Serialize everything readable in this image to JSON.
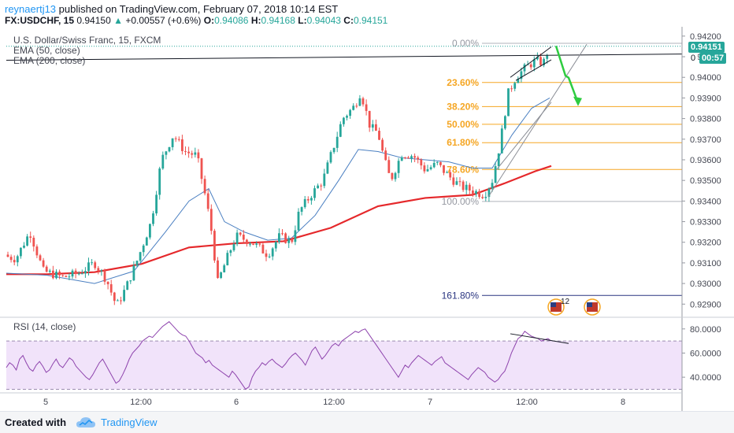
{
  "header": {
    "user": "reynaertj13",
    "published": " published on TradingView.com, February 07, 2018 10:14 EST",
    "symbol": "FX:USDCHF, 15",
    "open": "0.94150",
    "change": "+0.00557 (+0.6%)",
    "o_label": "O:",
    "o_value": "0.94086",
    "h_label": "H:",
    "h_value": "0.94168",
    "l_label": "L:",
    "l_value": "0.94043",
    "c_label": "C:",
    "c_value": "0.94151"
  },
  "legend": {
    "title": "U.S. Dollar/Swiss Franc, 15, FXCM",
    "ema50": "EMA (50, close)",
    "ema200": "EMA (200, close)",
    "rsi": "RSI (14, close)"
  },
  "price_badges": {
    "last_price": "0.94151",
    "countdown": "00:57",
    "partial": "0"
  },
  "footer": {
    "created_with": "Created with",
    "brand": "TradingView"
  },
  "colors": {
    "up": "#26a69a",
    "down": "#ef5350",
    "ema200": "#e5282b",
    "ema50": "#4a7fc1",
    "fib": "#f5a623",
    "rsi": "#8e44ad",
    "rsi_band": "#f1e3fa",
    "arrow": "#2ecc40",
    "fib_ext": "#2a3580"
  },
  "chart_data": {
    "type": "candlestick",
    "title": "U.S. Dollar/Swiss Franc, 15, FXCM",
    "price_axis": {
      "ylim": [
        0.9284,
        0.9423
      ],
      "ticks": [
        "0.94200",
        "0.94100",
        "0.94000",
        "0.93900",
        "0.93800",
        "0.93700",
        "0.93600",
        "0.93500",
        "0.93400",
        "0.93300",
        "0.93200",
        "0.93100",
        "0.93000",
        "0.92900"
      ]
    },
    "time_axis": {
      "ticks": [
        "5",
        "12:00",
        "6",
        "12:00",
        "7",
        "12:00",
        "8"
      ]
    },
    "fibonacci": [
      {
        "label": "0.00%",
        "price": 0.94165
      },
      {
        "label": "23.60%",
        "price": 0.93975
      },
      {
        "label": "38.20%",
        "price": 0.93858
      },
      {
        "label": "50.00%",
        "price": 0.93772
      },
      {
        "label": "61.80%",
        "price": 0.93683
      },
      {
        "label": "78.60%",
        "price": 0.93553
      },
      {
        "label": "100.00%",
        "price": 0.93398
      },
      {
        "label": "161.80%",
        "price": 0.92942
      }
    ],
    "rsi": {
      "ylim": [
        29,
        89
      ],
      "ticks": [
        "80.0000",
        "60.0000",
        "40.0000"
      ],
      "band": [
        30,
        70
      ],
      "values": [
        48,
        52,
        50,
        46,
        55,
        58,
        52,
        47,
        45,
        50,
        53,
        49,
        44,
        46,
        51,
        55,
        50,
        48,
        52,
        56,
        54,
        49,
        46,
        43,
        40,
        38,
        42,
        47,
        52,
        55,
        50,
        45,
        40,
        35,
        37,
        42,
        48,
        55,
        60,
        63,
        66,
        70,
        72,
        74,
        73,
        76,
        79,
        82,
        84,
        86,
        83,
        80,
        77,
        75,
        74,
        70,
        65,
        60,
        58,
        56,
        52,
        54,
        50,
        48,
        46,
        44,
        42,
        40,
        45,
        42,
        38,
        34,
        30,
        32,
        40,
        45,
        48,
        52,
        50,
        53,
        55,
        52,
        50,
        48,
        51,
        55,
        58,
        60,
        57,
        54,
        50,
        56,
        62,
        65,
        60,
        55,
        58,
        62,
        66,
        68,
        66,
        70,
        72,
        74,
        76,
        78,
        77,
        79,
        80,
        76,
        72,
        68,
        64,
        60,
        56,
        52,
        48,
        44,
        40,
        45,
        50,
        48,
        52,
        55,
        58,
        56,
        54,
        52,
        50,
        53,
        55,
        57,
        52,
        50,
        48,
        46,
        44,
        42,
        40,
        38,
        42,
        45,
        48,
        46,
        44,
        40,
        38,
        36,
        38,
        42,
        45,
        52,
        60,
        66,
        72,
        74,
        78,
        76,
        74,
        73,
        72,
        70,
        71,
        72,
        70
      ],
      "trendline": {
        "start": 76,
        "end": 68
      }
    }
  }
}
